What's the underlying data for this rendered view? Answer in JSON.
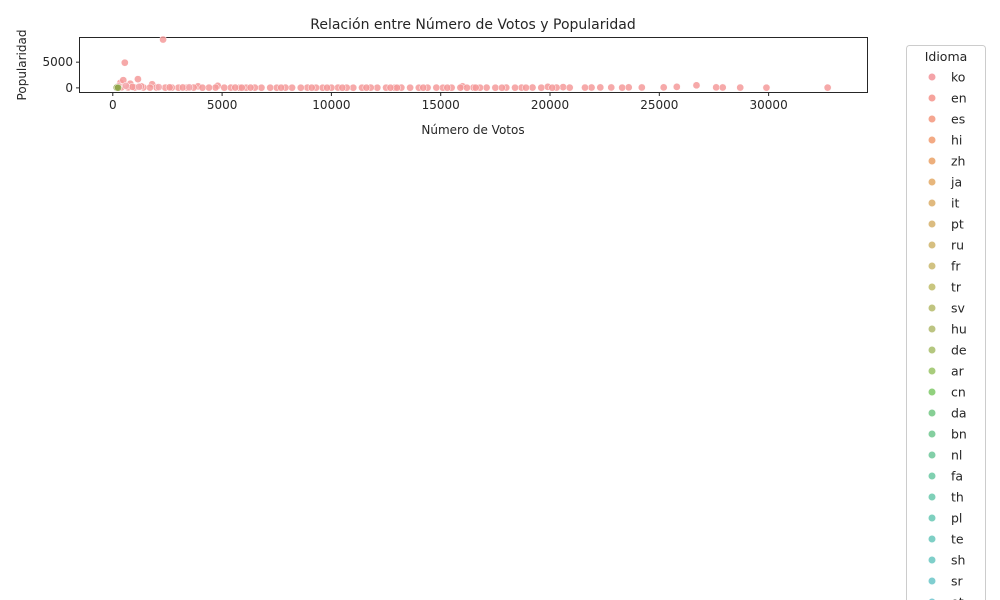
{
  "chart_data": {
    "type": "scatter",
    "title": "Relación entre Número de Votos y Popularidad",
    "xlabel": "Número de Votos",
    "ylabel": "Popularidad",
    "xlim": [
      -1500,
      34500
    ],
    "ylim": [
      -800,
      9700
    ],
    "xticks": [
      0,
      5000,
      10000,
      15000,
      20000,
      25000,
      30000
    ],
    "yticks": [
      0,
      5000
    ],
    "grid": false,
    "legend": {
      "title": "Idioma",
      "placement": "outside-right",
      "entries": [
        {
          "label": "ko",
          "color": "#f4a3a8"
        },
        {
          "label": "en",
          "color": "#f6a39c"
        },
        {
          "label": "es",
          "color": "#f5a690"
        },
        {
          "label": "hi",
          "color": "#f3aa84"
        },
        {
          "label": "zh",
          "color": "#edaf7c"
        },
        {
          "label": "ja",
          "color": "#e7b67c"
        },
        {
          "label": "it",
          "color": "#e0b97e"
        },
        {
          "label": "pt",
          "color": "#dbbc80"
        },
        {
          "label": "ru",
          "color": "#d6bf80"
        },
        {
          "label": "fr",
          "color": "#d1c282"
        },
        {
          "label": "tr",
          "color": "#c9c67f"
        },
        {
          "label": "sv",
          "color": "#c0c480"
        },
        {
          "label": "hu",
          "color": "#bcc482"
        },
        {
          "label": "de",
          "color": "#b4c77f"
        },
        {
          "label": "ar",
          "color": "#a8cc7c"
        },
        {
          "label": "cn",
          "color": "#91d17e"
        },
        {
          "label": "da",
          "color": "#87cf95"
        },
        {
          "label": "bn",
          "color": "#84cf9f"
        },
        {
          "label": "nl",
          "color": "#82cfa8"
        },
        {
          "label": "fa",
          "color": "#80d0b0"
        },
        {
          "label": "th",
          "color": "#7fd0b8"
        },
        {
          "label": "pl",
          "color": "#7ed0bf"
        },
        {
          "label": "te",
          "color": "#7ecfc5"
        },
        {
          "label": "sh",
          "color": "#7fcfca"
        },
        {
          "label": "sr",
          "color": "#80ced0"
        },
        {
          "label": "et",
          "color": "#82cdd5"
        }
      ]
    },
    "series": [
      {
        "name": "en",
        "color": "#f49a9a",
        "x": [
          2300,
          550,
          350,
          480,
          1150,
          800,
          1800,
          4800,
          3900,
          16000,
          26700,
          19900,
          20600,
          25800,
          23600,
          27600,
          27900,
          28700,
          29900,
          32700,
          25200,
          24200,
          22800,
          22300,
          21900,
          21600,
          20900,
          20300,
          19600,
          19200,
          18700,
          18400,
          18000,
          17500,
          17100,
          16800,
          16500,
          16200,
          15900,
          15500,
          15100,
          14800,
          14400,
          14000,
          13600,
          13200,
          12900,
          12500,
          12100,
          11800,
          11400,
          11000,
          10700,
          10300,
          10000,
          9600,
          9300,
          8900,
          8600,
          8200,
          7900,
          7500,
          7200,
          6800,
          6500,
          6100,
          5800,
          5400,
          5100,
          4700,
          4400,
          4100,
          3700,
          3400,
          3000,
          2700,
          2400,
          2000,
          1700,
          1400,
          1000,
          700,
          400,
          200,
          900,
          1300,
          2600,
          3200,
          5600,
          6300,
          7700,
          9100,
          10500,
          11600,
          13000,
          14200,
          15300,
          16600,
          17800,
          18900,
          20100,
          23300,
          9800,
          12700,
          5900
        ],
        "y": [
          9400,
          4900,
          1000,
          1500,
          1700,
          800,
          700,
          400,
          300,
          300,
          500,
          200,
          150,
          200,
          100,
          100,
          80,
          60,
          40,
          50,
          100,
          80,
          80,
          90,
          70,
          60,
          50,
          60,
          40,
          70,
          50,
          40,
          60,
          30,
          50,
          40,
          60,
          30,
          50,
          40,
          30,
          50,
          40,
          30,
          40,
          50,
          30,
          40,
          30,
          50,
          40,
          30,
          40,
          50,
          40,
          30,
          40,
          50,
          30,
          40,
          50,
          30,
          40,
          30,
          50,
          40,
          30,
          50,
          40,
          60,
          50,
          40,
          60,
          50,
          40,
          60,
          50,
          70,
          60,
          80,
          70,
          90,
          120,
          150,
          200,
          300,
          100,
          80,
          60,
          50,
          40,
          40,
          30,
          40,
          30,
          40,
          30,
          40,
          30,
          40,
          30,
          50,
          30,
          30,
          40
        ]
      },
      {
        "name": "ko",
        "color": "#f3a7ab",
        "x": [
          250,
          600,
          1200,
          2100,
          3500
        ],
        "y": [
          300,
          400,
          200,
          150,
          100
        ]
      },
      {
        "name": "de",
        "color": "#8fa54a",
        "x": [
          180,
          240
        ],
        "y": [
          60,
          30
        ]
      }
    ]
  }
}
